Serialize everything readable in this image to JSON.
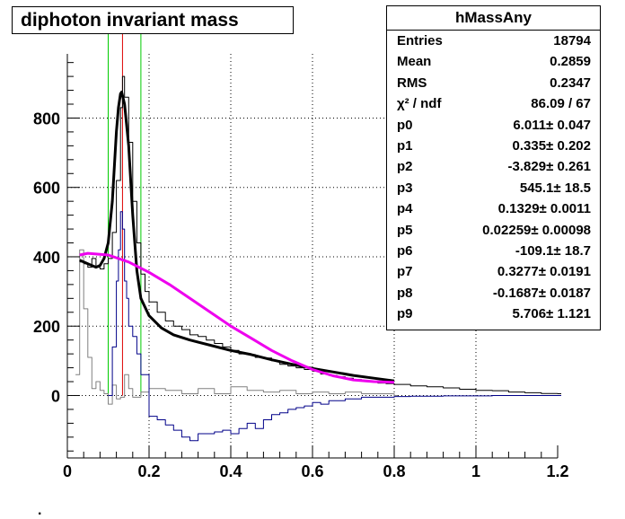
{
  "title": "diphoton invariant mass",
  "stats": {
    "name": "hMassAny",
    "rows": [
      {
        "key": "Entries",
        "value": "18794"
      },
      {
        "key": "Mean",
        "value": "0.2859"
      },
      {
        "key": "RMS",
        "value": "0.2347"
      },
      {
        "key": "χ² / ndf",
        "value": "86.09 / 67"
      },
      {
        "key": "p0",
        "value": "6.011± 0.047"
      },
      {
        "key": "p1",
        "value": "0.335± 0.202"
      },
      {
        "key": "p2",
        "value": "-3.829± 0.261"
      },
      {
        "key": "p3",
        "value": "545.1± 18.5"
      },
      {
        "key": "p4",
        "value": "0.1329± 0.0011"
      },
      {
        "key": "p5",
        "value": "0.02259± 0.00098"
      },
      {
        "key": "p6",
        "value": "-109.1± 18.7"
      },
      {
        "key": "p7",
        "value": "0.3277± 0.0191"
      },
      {
        "key": "p8",
        "value": "-0.1687± 0.0187"
      },
      {
        "key": "p9",
        "value": "5.706± 1.121"
      }
    ]
  },
  "chart_data": {
    "type": "line",
    "xlim": [
      0,
      1.2
    ],
    "ylim": [
      -180,
      985
    ],
    "xticks": [
      "0",
      "0.2",
      "0.4",
      "0.6",
      "0.8",
      "1",
      "1.2"
    ],
    "yticks": [
      "0",
      "200",
      "400",
      "600",
      "800"
    ],
    "xtick_values": [
      0,
      0.2,
      0.4,
      0.6,
      0.8,
      1.0,
      1.2
    ],
    "ytick_values": [
      0,
      200,
      400,
      600,
      800
    ],
    "grid": true,
    "vertical_lines": [
      {
        "x": 0.1,
        "color": "#00cc00"
      },
      {
        "x": 0.135,
        "color": "#dd0000"
      },
      {
        "x": 0.18,
        "color": "#00cc00"
      }
    ],
    "series": [
      {
        "color": "#000000",
        "style": "step",
        "x": [
          0.03,
          0.04,
          0.05,
          0.06,
          0.07,
          0.08,
          0.09,
          0.1,
          0.11,
          0.12,
          0.13,
          0.135,
          0.14,
          0.15,
          0.16,
          0.17,
          0.18,
          0.19,
          0.2,
          0.22,
          0.24,
          0.26,
          0.28,
          0.3,
          0.32,
          0.34,
          0.36,
          0.38,
          0.4,
          0.42,
          0.44,
          0.46,
          0.48,
          0.5,
          0.52,
          0.54,
          0.56,
          0.58,
          0.6,
          0.62,
          0.64,
          0.66,
          0.68,
          0.7,
          0.72,
          0.74,
          0.76,
          0.78,
          0.8,
          0.84,
          0.88,
          0.92,
          0.96,
          1.0,
          1.04,
          1.08,
          1.12,
          1.16,
          1.2
        ],
        "y": [
          385,
          380,
          370,
          395,
          370,
          365,
          380,
          395,
          470,
          620,
          830,
          920,
          860,
          730,
          560,
          440,
          350,
          300,
          270,
          240,
          215,
          200,
          190,
          175,
          170,
          160,
          150,
          140,
          130,
          120,
          118,
          110,
          108,
          100,
          90,
          85,
          80,
          75,
          70,
          62,
          58,
          54,
          50,
          46,
          42,
          40,
          36,
          34,
          32,
          28,
          25,
          22,
          18,
          15,
          14,
          10,
          8,
          6,
          5
        ]
      },
      {
        "color": "#808080",
        "style": "step",
        "x": [
          0.02,
          0.03,
          0.04,
          0.05,
          0.06,
          0.07,
          0.08,
          0.09,
          0.1,
          0.11,
          0.12,
          0.13,
          0.14,
          0.15,
          0.16,
          0.18,
          0.2,
          0.24,
          0.28,
          0.32,
          0.36,
          0.4,
          0.44,
          0.48,
          0.52,
          0.56,
          0.6,
          0.64,
          0.68,
          0.72,
          0.76,
          0.8
        ],
        "y": [
          60,
          420,
          250,
          110,
          20,
          40,
          15,
          5,
          -25,
          30,
          -10,
          -5,
          60,
          20,
          -5,
          10,
          20,
          15,
          5,
          20,
          5,
          25,
          15,
          10,
          15,
          5,
          10,
          5,
          10,
          5,
          5,
          0
        ]
      },
      {
        "color": "#000088",
        "style": "step",
        "x": [
          0.1,
          0.11,
          0.12,
          0.125,
          0.13,
          0.135,
          0.14,
          0.145,
          0.15,
          0.16,
          0.17,
          0.18,
          0.2,
          0.22,
          0.24,
          0.26,
          0.28,
          0.3,
          0.32,
          0.34,
          0.36,
          0.38,
          0.4,
          0.42,
          0.44,
          0.46,
          0.48,
          0.5,
          0.52,
          0.54,
          0.56,
          0.58,
          0.6,
          0.62,
          0.64,
          0.68,
          0.72,
          0.76,
          0.8,
          0.84,
          0.88,
          0.92,
          0.96,
          1.0,
          1.04,
          1.08,
          1.12,
          1.16,
          1.2
        ],
        "y": [
          0,
          140,
          330,
          420,
          530,
          480,
          330,
          280,
          200,
          170,
          120,
          60,
          -60,
          -70,
          -85,
          -100,
          -120,
          -130,
          -110,
          -110,
          -105,
          -100,
          -110,
          -95,
          -80,
          -95,
          -70,
          -55,
          -50,
          -40,
          -35,
          -30,
          -20,
          -25,
          -15,
          -10,
          -5,
          -5,
          -3,
          -2,
          -2,
          -1,
          -1,
          -1,
          0,
          0,
          0,
          0,
          0
        ]
      },
      {
        "color": "#000000",
        "style": "curve",
        "x": [
          0.03,
          0.05,
          0.07,
          0.08,
          0.09,
          0.1,
          0.11,
          0.12,
          0.125,
          0.13,
          0.1329,
          0.14,
          0.15,
          0.16,
          0.17,
          0.18,
          0.2,
          0.23,
          0.26,
          0.3,
          0.35,
          0.4,
          0.45,
          0.5,
          0.55,
          0.6,
          0.65,
          0.7,
          0.75,
          0.8
        ],
        "y": [
          390,
          380,
          370,
          375,
          395,
          440,
          560,
          760,
          830,
          870,
          875,
          840,
          720,
          520,
          360,
          280,
          230,
          195,
          175,
          160,
          145,
          130,
          118,
          103,
          90,
          78,
          68,
          58,
          50,
          42
        ]
      },
      {
        "color": "#ee00ee",
        "style": "curve",
        "x": [
          0.03,
          0.05,
          0.1,
          0.15,
          0.2,
          0.25,
          0.3,
          0.35,
          0.4,
          0.45,
          0.5,
          0.55,
          0.6,
          0.65,
          0.7,
          0.75,
          0.8
        ],
        "y": [
          405,
          410,
          405,
          385,
          355,
          320,
          280,
          240,
          200,
          165,
          130,
          100,
          75,
          57,
          45,
          40,
          38
        ]
      }
    ]
  }
}
